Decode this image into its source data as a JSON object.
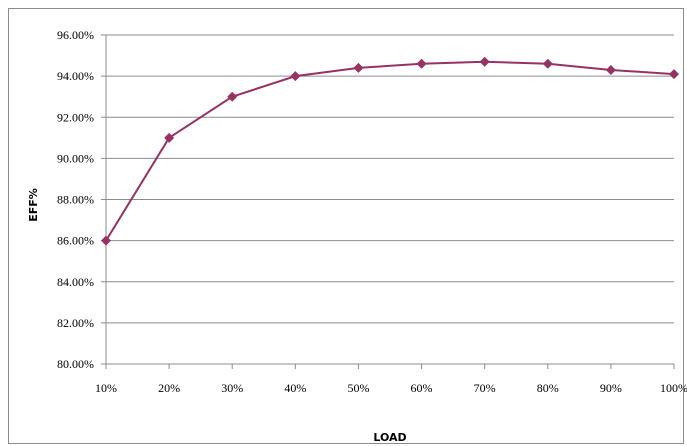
{
  "chart_data": {
    "type": "line",
    "categories": [
      "10%",
      "20%",
      "30%",
      "40%",
      "50%",
      "60%",
      "70%",
      "80%",
      "90%",
      "100%"
    ],
    "series": [
      {
        "values": [
          86.0,
          91.0,
          93.0,
          94.0,
          94.4,
          94.6,
          94.7,
          94.6,
          94.3,
          94.1
        ],
        "color": "#963264",
        "marker": "diamond"
      }
    ],
    "xlabel": "LOAD",
    "ylabel": "EFF%",
    "ylim": [
      80,
      96
    ],
    "ytick_step": 2,
    "ytick_labels": [
      "80.00%",
      "82.00%",
      "84.00%",
      "86.00%",
      "88.00%",
      "90.00%",
      "92.00%",
      "94.00%",
      "96.00%"
    ],
    "grid": true,
    "legend": "none"
  }
}
